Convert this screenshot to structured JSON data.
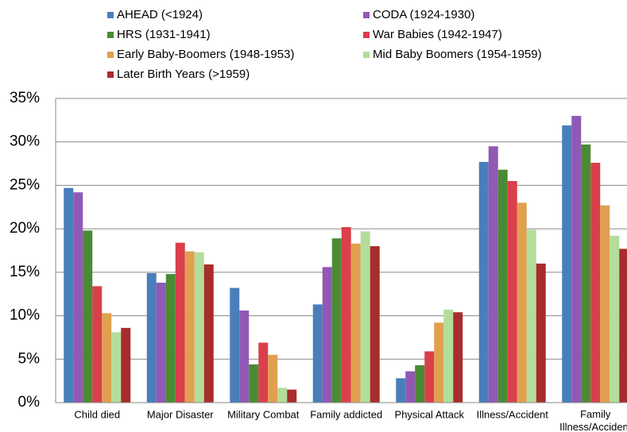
{
  "chart_data": {
    "type": "bar",
    "categories": [
      "Child died",
      "Major Disaster",
      "Military Combat",
      "Family addicted",
      "Physical Attack",
      "Illness/Accident",
      "Family Illness/Accident"
    ],
    "series": [
      {
        "name": "AHEAD (<1924)",
        "color": "#4a7ebb",
        "values": [
          24.7,
          14.9,
          13.2,
          11.3,
          2.8,
          27.7,
          31.9
        ]
      },
      {
        "name": "CODA (1924-1930)",
        "color": "#9059b5",
        "values": [
          24.2,
          13.8,
          10.6,
          15.6,
          3.6,
          29.5,
          33.0
        ]
      },
      {
        "name": "HRS (1931-1941)",
        "color": "#4a8a35",
        "values": [
          19.8,
          14.8,
          4.4,
          18.9,
          4.3,
          26.8,
          29.7
        ]
      },
      {
        "name": "War Babies (1942-1947)",
        "color": "#d9404a",
        "values": [
          13.4,
          18.4,
          6.9,
          20.2,
          5.9,
          25.5,
          27.6
        ]
      },
      {
        "name": "Early Baby-Boomers (1948-1953)",
        "color": "#e0a050",
        "values": [
          10.3,
          17.4,
          5.5,
          18.3,
          9.2,
          23.0,
          22.7
        ]
      },
      {
        "name": "Mid Baby Boomers (1954-1959)",
        "color": "#b3dd9b",
        "values": [
          8.1,
          17.3,
          1.7,
          19.7,
          10.7,
          19.9,
          19.2
        ]
      },
      {
        "name": "Later Birth Years (>1959)",
        "color": "#a82c2c",
        "values": [
          8.6,
          15.9,
          1.5,
          18.0,
          10.4,
          16.0,
          17.7
        ]
      }
    ],
    "ylim": [
      0,
      35
    ],
    "yticks": [
      {
        "value": 0,
        "label": "0%"
      },
      {
        "value": 5,
        "label": "5%"
      },
      {
        "value": 10,
        "label": "10%"
      },
      {
        "value": 15,
        "label": "15%"
      },
      {
        "value": 20,
        "label": "20%"
      },
      {
        "value": 25,
        "label": "25%"
      },
      {
        "value": 30,
        "label": "30%"
      },
      {
        "value": 35,
        "label": "35%"
      }
    ],
    "grid": true
  }
}
